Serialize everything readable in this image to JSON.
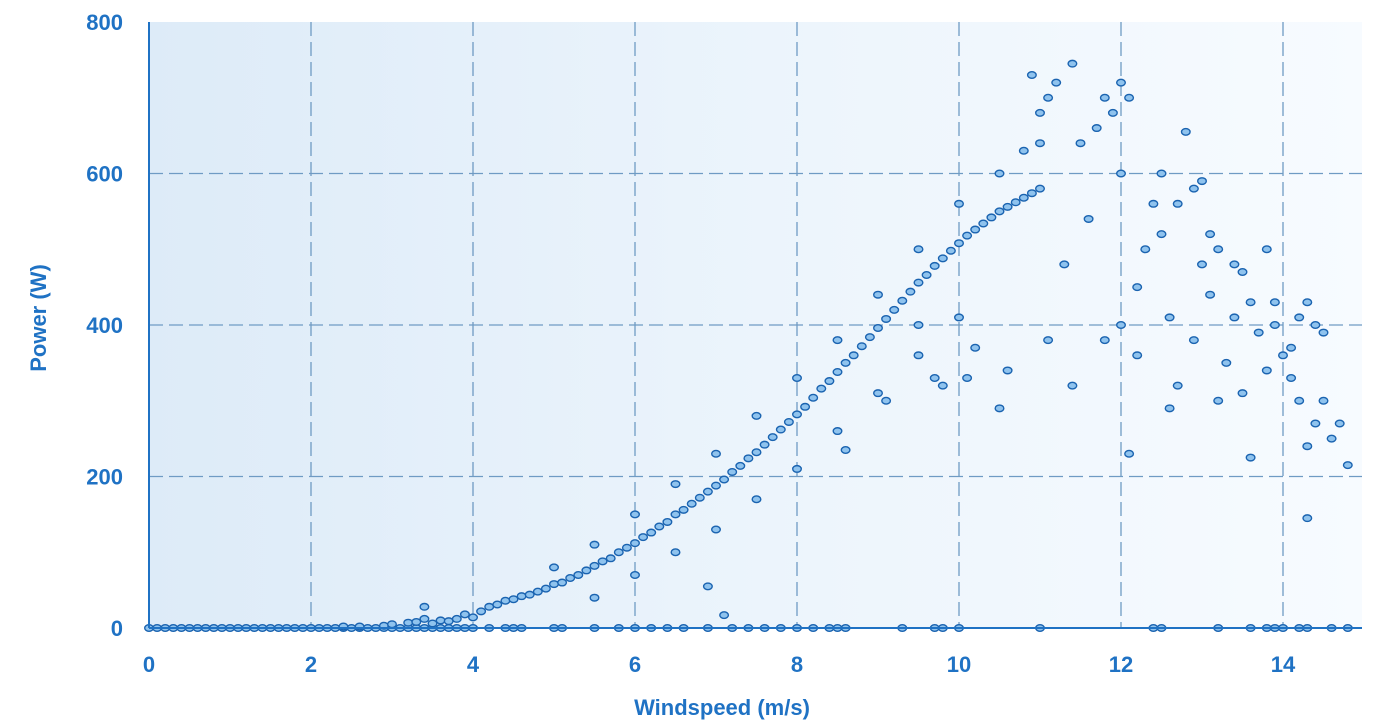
{
  "chart_data": {
    "type": "scatter",
    "title": "",
    "xlabel": "Windspeed (m/s)",
    "ylabel": "Power (W)",
    "xlim": [
      0,
      15
    ],
    "ylim": [
      0,
      800
    ],
    "x_ticks": [
      0,
      2,
      4,
      6,
      8,
      10,
      12,
      14
    ],
    "y_ticks": [
      0,
      200,
      400,
      600,
      800
    ],
    "grid": true,
    "colors": {
      "accent": "#1f72c4",
      "marker_fill": "#8fc3ee",
      "marker_edge": "#1a63b0",
      "grid": "#6f9bc4",
      "background": "#e8f2fb"
    },
    "series": [
      {
        "values": [
          [
            0.0,
            0
          ],
          [
            0.1,
            0
          ],
          [
            0.2,
            0
          ],
          [
            0.3,
            0
          ],
          [
            0.4,
            0
          ],
          [
            0.5,
            0
          ],
          [
            0.6,
            0
          ],
          [
            0.7,
            0
          ],
          [
            0.8,
            0
          ],
          [
            0.9,
            0
          ],
          [
            1.0,
            0
          ],
          [
            1.1,
            0
          ],
          [
            1.2,
            0
          ],
          [
            1.3,
            0
          ],
          [
            1.4,
            0
          ],
          [
            1.5,
            0
          ],
          [
            1.6,
            0
          ],
          [
            1.7,
            0
          ],
          [
            1.8,
            0
          ],
          [
            1.9,
            0
          ],
          [
            2.0,
            0
          ],
          [
            2.1,
            0
          ],
          [
            2.2,
            0
          ],
          [
            2.3,
            0
          ],
          [
            2.4,
            0
          ],
          [
            2.5,
            0
          ],
          [
            2.6,
            0
          ],
          [
            2.7,
            0
          ],
          [
            2.8,
            0
          ],
          [
            2.9,
            0
          ],
          [
            3.0,
            0
          ],
          [
            3.1,
            0
          ],
          [
            3.2,
            0
          ],
          [
            3.3,
            0
          ],
          [
            3.4,
            0
          ],
          [
            3.5,
            0
          ],
          [
            3.6,
            0
          ],
          [
            3.7,
            0
          ],
          [
            3.8,
            0
          ],
          [
            3.9,
            0
          ],
          [
            4.0,
            0
          ],
          [
            4.2,
            0
          ],
          [
            4.4,
            0
          ],
          [
            4.5,
            0
          ],
          [
            4.6,
            0
          ],
          [
            5.0,
            0
          ],
          [
            5.1,
            0
          ],
          [
            5.5,
            0
          ],
          [
            5.8,
            0
          ],
          [
            6.0,
            0
          ],
          [
            6.2,
            0
          ],
          [
            6.4,
            0
          ],
          [
            6.6,
            0
          ],
          [
            6.9,
            0
          ],
          [
            7.2,
            0
          ],
          [
            7.4,
            0
          ],
          [
            7.6,
            0
          ],
          [
            7.8,
            0
          ],
          [
            8.0,
            0
          ],
          [
            8.2,
            0
          ],
          [
            8.4,
            0
          ],
          [
            8.5,
            0
          ],
          [
            8.6,
            0
          ],
          [
            9.3,
            0
          ],
          [
            9.7,
            0
          ],
          [
            9.8,
            0
          ],
          [
            10.0,
            0
          ],
          [
            11.0,
            0
          ],
          [
            12.4,
            0
          ],
          [
            12.5,
            0
          ],
          [
            13.2,
            0
          ],
          [
            13.6,
            0
          ],
          [
            13.8,
            0
          ],
          [
            13.9,
            0
          ],
          [
            14.0,
            0
          ],
          [
            14.2,
            0
          ],
          [
            14.3,
            0
          ],
          [
            14.6,
            0
          ],
          [
            14.8,
            0
          ],
          [
            2.4,
            2
          ],
          [
            2.6,
            2
          ],
          [
            2.9,
            3
          ],
          [
            3.0,
            5
          ],
          [
            3.2,
            7
          ],
          [
            3.3,
            8
          ],
          [
            3.4,
            12
          ],
          [
            3.4,
            28
          ],
          [
            3.5,
            6
          ],
          [
            3.6,
            10
          ],
          [
            3.7,
            9
          ],
          [
            3.8,
            12
          ],
          [
            3.9,
            18
          ],
          [
            4.0,
            14
          ],
          [
            4.1,
            22
          ],
          [
            4.2,
            28
          ],
          [
            4.3,
            31
          ],
          [
            4.4,
            36
          ],
          [
            4.5,
            38
          ],
          [
            4.6,
            42
          ],
          [
            4.7,
            44
          ],
          [
            4.8,
            48
          ],
          [
            4.9,
            52
          ],
          [
            5.0,
            58
          ],
          [
            5.1,
            60
          ],
          [
            5.2,
            66
          ],
          [
            5.3,
            70
          ],
          [
            5.4,
            76
          ],
          [
            5.5,
            82
          ],
          [
            5.6,
            88
          ],
          [
            5.7,
            92
          ],
          [
            5.8,
            100
          ],
          [
            5.9,
            106
          ],
          [
            6.0,
            112
          ],
          [
            6.1,
            120
          ],
          [
            6.2,
            126
          ],
          [
            6.3,
            134
          ],
          [
            6.4,
            140
          ],
          [
            6.5,
            150
          ],
          [
            6.6,
            156
          ],
          [
            6.7,
            164
          ],
          [
            6.8,
            172
          ],
          [
            6.9,
            180
          ],
          [
            7.0,
            188
          ],
          [
            7.1,
            196
          ],
          [
            7.2,
            206
          ],
          [
            7.3,
            214
          ],
          [
            7.4,
            224
          ],
          [
            7.5,
            232
          ],
          [
            7.6,
            242
          ],
          [
            7.7,
            252
          ],
          [
            7.8,
            262
          ],
          [
            7.9,
            272
          ],
          [
            8.0,
            282
          ],
          [
            8.1,
            292
          ],
          [
            8.2,
            304
          ],
          [
            8.3,
            316
          ],
          [
            8.4,
            326
          ],
          [
            8.5,
            338
          ],
          [
            8.6,
            350
          ],
          [
            8.7,
            360
          ],
          [
            8.8,
            372
          ],
          [
            8.9,
            384
          ],
          [
            9.0,
            396
          ],
          [
            9.1,
            408
          ],
          [
            9.2,
            420
          ],
          [
            9.3,
            432
          ],
          [
            9.4,
            444
          ],
          [
            9.5,
            456
          ],
          [
            9.6,
            466
          ],
          [
            9.7,
            478
          ],
          [
            9.8,
            488
          ],
          [
            9.9,
            498
          ],
          [
            10.0,
            508
          ],
          [
            10.1,
            518
          ],
          [
            10.2,
            526
          ],
          [
            10.3,
            534
          ],
          [
            10.4,
            542
          ],
          [
            10.5,
            550
          ],
          [
            10.6,
            556
          ],
          [
            10.7,
            562
          ],
          [
            10.8,
            568
          ],
          [
            10.9,
            574
          ],
          [
            11.0,
            580
          ],
          [
            5.5,
            40
          ],
          [
            6.0,
            70
          ],
          [
            6.5,
            100
          ],
          [
            7.0,
            130
          ],
          [
            7.5,
            170
          ],
          [
            8.0,
            210
          ],
          [
            8.5,
            260
          ],
          [
            9.0,
            310
          ],
          [
            9.5,
            360
          ],
          [
            10.0,
            410
          ],
          [
            5.0,
            80
          ],
          [
            5.5,
            110
          ],
          [
            6.0,
            150
          ],
          [
            6.5,
            190
          ],
          [
            7.0,
            230
          ],
          [
            7.5,
            280
          ],
          [
            8.0,
            330
          ],
          [
            8.5,
            380
          ],
          [
            9.0,
            440
          ],
          [
            9.5,
            500
          ],
          [
            10.0,
            560
          ],
          [
            10.5,
            600
          ],
          [
            11.0,
            640
          ],
          [
            6.9,
            55
          ],
          [
            7.1,
            17
          ],
          [
            8.6,
            235
          ],
          [
            9.1,
            300
          ],
          [
            9.5,
            400
          ],
          [
            9.7,
            330
          ],
          [
            9.8,
            320
          ],
          [
            10.1,
            330
          ],
          [
            10.2,
            370
          ],
          [
            10.5,
            290
          ],
          [
            10.6,
            340
          ],
          [
            10.8,
            630
          ],
          [
            10.9,
            730
          ],
          [
            11.0,
            680
          ],
          [
            11.1,
            700
          ],
          [
            11.2,
            720
          ],
          [
            11.4,
            745
          ],
          [
            11.5,
            640
          ],
          [
            11.1,
            380
          ],
          [
            11.3,
            480
          ],
          [
            11.4,
            320
          ],
          [
            11.6,
            540
          ],
          [
            11.7,
            660
          ],
          [
            11.8,
            700
          ],
          [
            11.9,
            680
          ],
          [
            12.0,
            720
          ],
          [
            12.1,
            700
          ],
          [
            12.0,
            600
          ],
          [
            11.8,
            380
          ],
          [
            12.0,
            400
          ],
          [
            12.1,
            230
          ],
          [
            12.2,
            360
          ],
          [
            12.3,
            500
          ],
          [
            12.4,
            560
          ],
          [
            12.5,
            520
          ],
          [
            12.6,
            290
          ],
          [
            12.7,
            320
          ],
          [
            12.8,
            655
          ],
          [
            12.9,
            580
          ],
          [
            13.0,
            480
          ],
          [
            13.0,
            590
          ],
          [
            13.1,
            440
          ],
          [
            13.2,
            500
          ],
          [
            13.3,
            350
          ],
          [
            13.4,
            410
          ],
          [
            13.5,
            470
          ],
          [
            13.6,
            225
          ],
          [
            13.7,
            390
          ],
          [
            13.8,
            500
          ],
          [
            13.9,
            430
          ],
          [
            14.0,
            360
          ],
          [
            14.1,
            330
          ],
          [
            14.2,
            300
          ],
          [
            14.3,
            240
          ],
          [
            14.4,
            270
          ],
          [
            14.5,
            300
          ],
          [
            14.3,
            145
          ],
          [
            14.6,
            250
          ],
          [
            14.7,
            270
          ],
          [
            14.8,
            215
          ],
          [
            12.5,
            600
          ],
          [
            12.7,
            560
          ],
          [
            13.1,
            520
          ],
          [
            13.4,
            480
          ],
          [
            13.6,
            430
          ],
          [
            13.9,
            400
          ],
          [
            14.2,
            410
          ],
          [
            14.3,
            430
          ],
          [
            14.4,
            400
          ],
          [
            14.5,
            390
          ],
          [
            14.1,
            370
          ],
          [
            13.8,
            340
          ],
          [
            13.5,
            310
          ],
          [
            13.2,
            300
          ],
          [
            12.9,
            380
          ],
          [
            12.6,
            410
          ],
          [
            12.2,
            450
          ]
        ]
      }
    ]
  }
}
